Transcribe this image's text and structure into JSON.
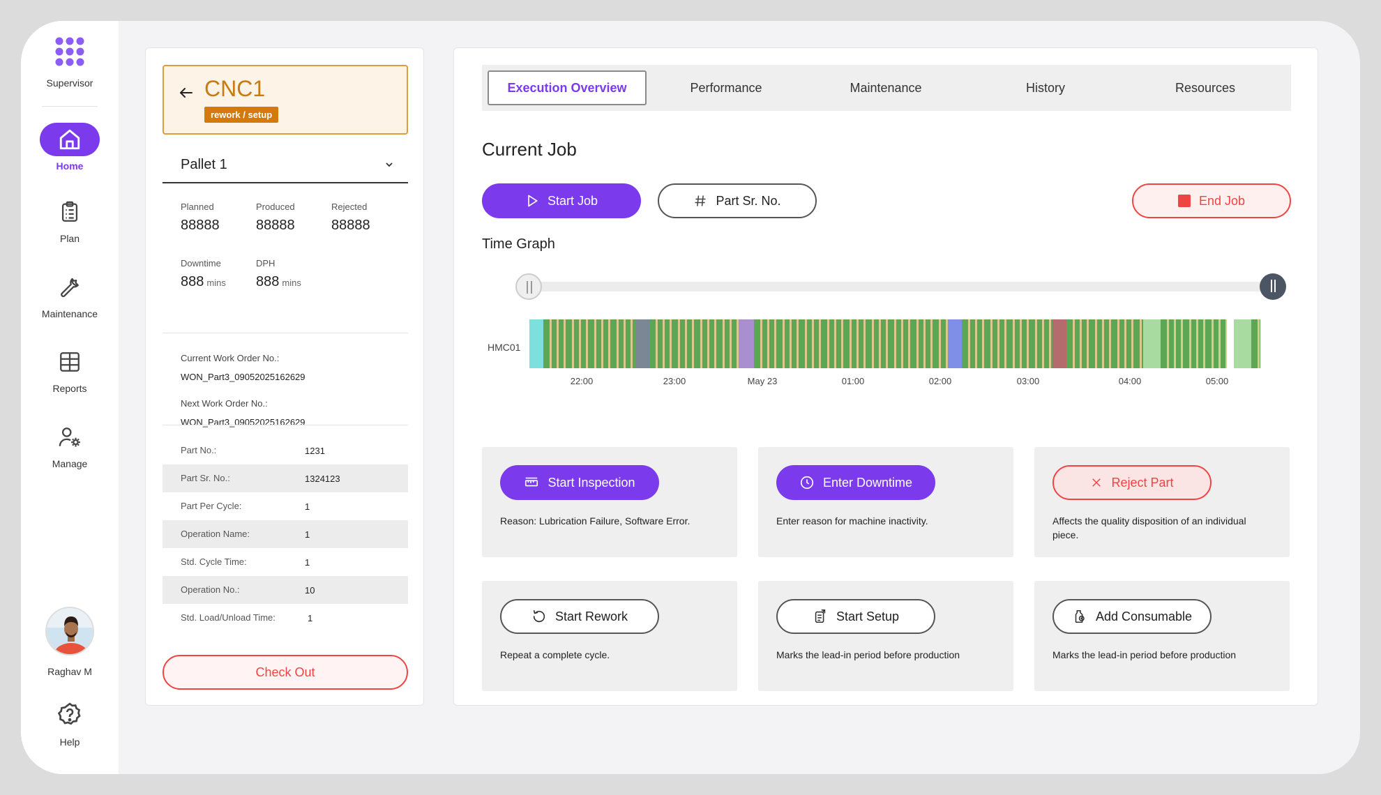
{
  "sidebar": {
    "brand_label": "Supervisor",
    "items": [
      {
        "label": "Home",
        "icon": "home-icon",
        "active": true
      },
      {
        "label": "Plan",
        "icon": "clipboard-icon",
        "active": false
      },
      {
        "label": "Maintenance",
        "icon": "wrench-icon",
        "active": false
      },
      {
        "label": "Reports",
        "icon": "grid-table-icon",
        "active": false
      },
      {
        "label": "Manage",
        "icon": "user-settings-icon",
        "active": false
      }
    ],
    "user_name": "Raghav M",
    "help_label": "Help"
  },
  "machine": {
    "name": "CNC1",
    "tag": "rework / setup",
    "pallet": "Pallet 1"
  },
  "stats": {
    "planned_label": "Planned",
    "planned_value": "88888",
    "produced_label": "Produced",
    "produced_value": "88888",
    "rejected_label": "Rejected",
    "rejected_value": "88888",
    "downtime_label": "Downtime",
    "downtime_value": "888",
    "downtime_unit": "mins",
    "dph_label": "DPH",
    "dph_value": "888",
    "dph_unit": "mins"
  },
  "work_orders": {
    "current_label": "Current Work Order No.:",
    "current_value": "WON_Part3_09052025162629",
    "next_label": "Next Work Order No.:",
    "next_value": "WON_Part3_09052025162629"
  },
  "details": [
    {
      "key": "Part No.:",
      "value": "1231"
    },
    {
      "key": "Part Sr. No.:",
      "value": "1324123"
    },
    {
      "key": "Part Per Cycle:",
      "value": "1"
    },
    {
      "key": "Operation Name:",
      "value": "1"
    },
    {
      "key": "Std. Cycle Time:",
      "value": "1"
    },
    {
      "key": "Operation No.:",
      "value": "10"
    },
    {
      "key": "Std. Load/Unload Time:",
      "value": "1"
    }
  ],
  "checkout_label": "Check Out",
  "tabs": [
    "Execution Overview",
    "Performance",
    "Maintenance",
    "History",
    "Resources"
  ],
  "current_job": {
    "title": "Current Job",
    "start_job": "Start Job",
    "part_sr_no": "Part Sr. No.",
    "end_job": "End Job"
  },
  "time_graph": {
    "title": "Time Graph",
    "row_label": "HMC01",
    "ticks": [
      "22:00",
      "23:00",
      "May 23",
      "01:00",
      "02:00",
      "03:00",
      "04:00",
      "05:00"
    ],
    "colors": {
      "running": "#5da653",
      "idle": "#d9c98a",
      "cyan": "#7ee0dc",
      "slate": "#7b8794",
      "purple": "#a98fd0",
      "blue": "#7f8fe8",
      "red": "#b46b6b",
      "light_green": "#a8dba0"
    }
  },
  "actions": [
    {
      "label": "Start Inspection",
      "desc": "Reason: Lubrication Failure, Software Error.",
      "icon": "ruler-icon",
      "style": "primary"
    },
    {
      "label": "Enter Downtime",
      "desc": "Enter reason for machine inactivity.",
      "icon": "clock-icon",
      "style": "primary"
    },
    {
      "label": "Reject Part",
      "desc": "Affects the quality disposition of an individual piece.",
      "icon": "x-icon",
      "style": "reject"
    },
    {
      "label": "Start Rework",
      "desc": "Repeat a complete cycle.",
      "icon": "rotate-icon",
      "style": "outline"
    },
    {
      "label": "Start Setup",
      "desc": "Marks the lead-in period before production",
      "icon": "setup-icon",
      "style": "outline"
    },
    {
      "label": "Add Consumable",
      "desc": "Marks the lead-in period before production",
      "icon": "consumable-icon",
      "style": "outline"
    }
  ]
}
